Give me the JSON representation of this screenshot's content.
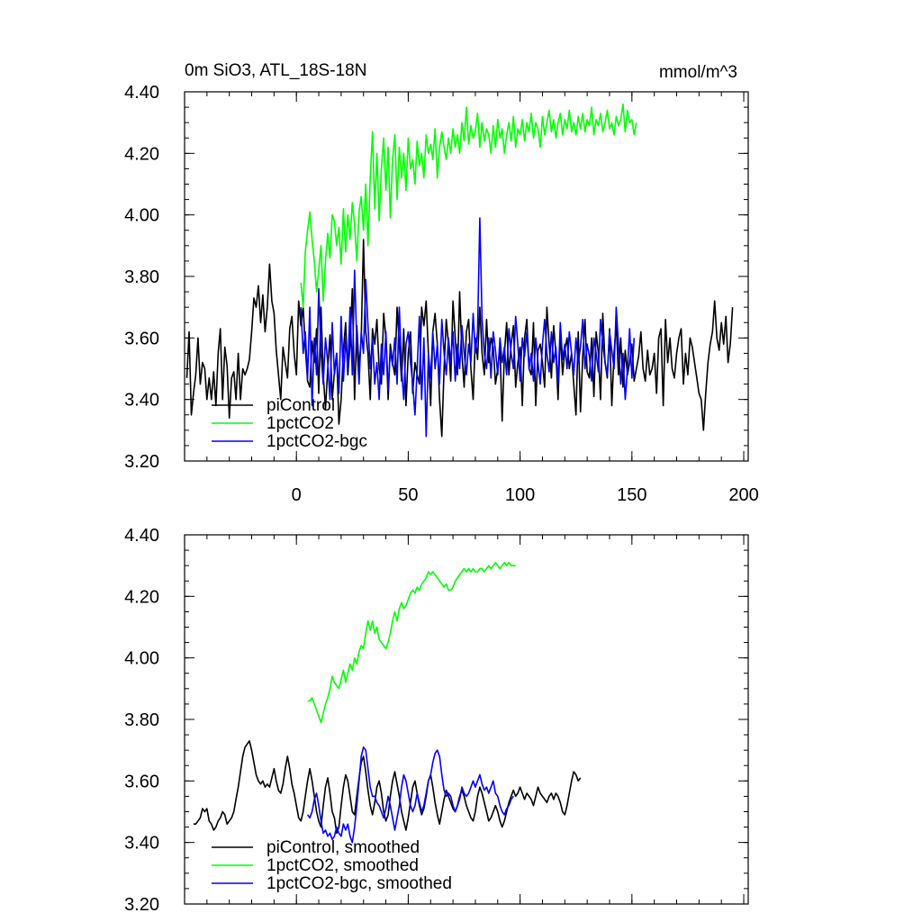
{
  "chart_data": [
    {
      "type": "line",
      "title": "0m SiO3, ATL_18S-18N",
      "units": "mmol/m^3",
      "xlim": [
        -50,
        202
      ],
      "ylim": [
        3.2,
        4.4
      ],
      "xticks": [
        0,
        50,
        100,
        150,
        200
      ],
      "xtick_labels": [
        "0",
        "50",
        "100",
        "150",
        "200"
      ],
      "yticks": [
        3.2,
        3.4,
        3.6,
        3.8,
        4.0,
        4.2,
        4.4
      ],
      "ytick_labels": [
        "3.20",
        "3.40",
        "3.60",
        "3.80",
        "4.00",
        "4.20",
        "4.40"
      ],
      "legend_position": "bottom-left",
      "series": [
        {
          "name": "piControl",
          "color": "#000000",
          "x_start": -49,
          "values": [
            3.47,
            3.62,
            3.35,
            3.42,
            3.48,
            3.6,
            3.45,
            3.52,
            3.5,
            3.4,
            3.47,
            3.4,
            3.49,
            3.38,
            3.55,
            3.63,
            3.4,
            3.57,
            3.51,
            3.34,
            3.47,
            3.49,
            3.4,
            3.55,
            3.4,
            3.5,
            3.48,
            3.5,
            3.53,
            3.62,
            3.73,
            3.7,
            3.77,
            3.65,
            3.74,
            3.62,
            3.7,
            3.84,
            3.72,
            3.68,
            3.56,
            3.48,
            3.4,
            3.57,
            3.52,
            3.47,
            3.63,
            3.67,
            3.55,
            3.48,
            3.72,
            3.64,
            3.7,
            3.57,
            3.46,
            3.44,
            3.59,
            3.52,
            3.63,
            3.42,
            3.7,
            3.48,
            3.37,
            3.5,
            3.61,
            3.4,
            3.49,
            3.55,
            3.32,
            3.4,
            3.56,
            3.65,
            3.48,
            3.58,
            3.76,
            3.4,
            3.64,
            3.5,
            3.6,
            3.92,
            3.62,
            3.55,
            3.4,
            3.63,
            3.58,
            3.66,
            3.5,
            3.45,
            3.68,
            3.6,
            3.4,
            3.58,
            3.52,
            3.48,
            3.7,
            3.58,
            3.46,
            3.63,
            3.38,
            3.55,
            3.62,
            3.42,
            3.52,
            3.48,
            3.45,
            3.7,
            3.64,
            3.72,
            3.55,
            3.38,
            3.62,
            3.68,
            3.58,
            3.4,
            3.28,
            3.5,
            3.66,
            3.58,
            3.46,
            3.72,
            3.6,
            3.48,
            3.75,
            3.55,
            3.44,
            3.62,
            3.66,
            3.5,
            3.4,
            3.6,
            3.53,
            3.7,
            3.55,
            3.48,
            3.66,
            3.52,
            3.6,
            3.57,
            3.45,
            3.5,
            3.57,
            3.33,
            3.55,
            3.65,
            3.48,
            3.58,
            3.64,
            3.44,
            3.52,
            3.57,
            3.38,
            3.6,
            3.66,
            3.5,
            3.48,
            3.65,
            3.38,
            3.56,
            3.58,
            3.52,
            3.44,
            3.7,
            3.58,
            3.47,
            3.64,
            3.55,
            3.4,
            3.62,
            3.48,
            3.56,
            3.6,
            3.5,
            3.55,
            3.45,
            3.35,
            3.62,
            3.36,
            3.54,
            3.66,
            3.49,
            3.47,
            3.6,
            3.41,
            3.62,
            3.55,
            3.4,
            3.68,
            3.52,
            3.47,
            3.63,
            3.38,
            3.55,
            3.65,
            3.48,
            3.6,
            3.44,
            3.56,
            3.48,
            3.52,
            3.58,
            3.46,
            3.5,
            3.54,
            3.62,
            3.5,
            3.46,
            3.56,
            3.48,
            3.5,
            3.55,
            3.42,
            3.6,
            3.63,
            3.38,
            3.66,
            3.52,
            3.6,
            3.5,
            3.47,
            3.55,
            3.6,
            3.63,
            3.45,
            3.55,
            3.48,
            3.6,
            3.57,
            3.52,
            3.47,
            3.42,
            3.4,
            3.3,
            3.42,
            3.52,
            3.58,
            3.62,
            3.72,
            3.6,
            3.56,
            3.65,
            3.58,
            3.67,
            3.52,
            3.58,
            3.7
          ]
        },
        {
          "name": "1pctCO2",
          "color": "#00ff00",
          "x_start": 2,
          "values": [
            3.78,
            3.7,
            3.88,
            3.95,
            4.01,
            3.92,
            3.85,
            3.75,
            3.82,
            3.9,
            3.72,
            3.85,
            3.94,
            3.86,
            4.0,
            3.98,
            3.9,
            3.96,
            3.84,
            4.02,
            3.88,
            4.0,
            3.92,
            4.04,
            3.97,
            3.85,
            4.01,
            4.06,
            3.95,
            4.1,
            3.9,
            4.12,
            4.27,
            4.02,
            4.2,
            3.98,
            4.15,
            4.25,
            4.08,
            4.22,
            3.99,
            4.18,
            4.26,
            4.05,
            4.22,
            4.12,
            4.2,
            4.08,
            4.25,
            4.15,
            4.18,
            4.1,
            4.24,
            4.16,
            4.2,
            4.12,
            4.26,
            4.2,
            4.23,
            4.18,
            4.28,
            4.12,
            4.22,
            4.27,
            4.22,
            4.18,
            4.25,
            4.2,
            4.28,
            4.22,
            4.26,
            4.2,
            4.3,
            4.24,
            4.35,
            4.23,
            4.29,
            4.25,
            4.27,
            4.33,
            4.22,
            4.3,
            4.24,
            4.28,
            4.26,
            4.2,
            4.29,
            4.22,
            4.31,
            4.25,
            4.28,
            4.2,
            4.26,
            4.3,
            4.24,
            4.32,
            4.22,
            4.28,
            4.26,
            4.31,
            4.24,
            4.3,
            4.27,
            4.33,
            4.25,
            4.3,
            4.28,
            4.22,
            4.32,
            4.26,
            4.3,
            4.34,
            4.27,
            4.31,
            4.25,
            4.3,
            4.33,
            4.26,
            4.31,
            4.28,
            4.34,
            4.27,
            4.3,
            4.26,
            4.32,
            4.28,
            4.33,
            4.27,
            4.31,
            4.29,
            4.35,
            4.26,
            4.31,
            4.29,
            4.33,
            4.27,
            4.3,
            4.34,
            4.28,
            4.3,
            4.26,
            4.32,
            4.29,
            4.31,
            4.36,
            4.27,
            4.34,
            4.3,
            4.31,
            4.26,
            4.3
          ]
        },
        {
          "name": "1pctCO2-bgc",
          "color": "#0000ff",
          "x_start": 2,
          "values": [
            3.7,
            3.55,
            3.62,
            3.47,
            3.7,
            3.38,
            3.6,
            3.48,
            3.76,
            3.55,
            3.45,
            3.6,
            3.52,
            3.4,
            3.65,
            3.48,
            3.55,
            3.42,
            3.67,
            3.46,
            3.6,
            3.5,
            3.7,
            3.48,
            3.82,
            3.58,
            3.45,
            3.62,
            3.55,
            3.79,
            3.64,
            3.5,
            3.6,
            3.45,
            3.52,
            3.4,
            3.58,
            3.48,
            3.62,
            3.43,
            3.56,
            3.51,
            3.6,
            3.45,
            3.7,
            3.5,
            3.4,
            3.58,
            3.62,
            3.52,
            3.45,
            3.35,
            3.5,
            3.67,
            3.4,
            3.6,
            3.28,
            3.55,
            3.47,
            3.62,
            3.5,
            3.58,
            3.45,
            3.66,
            3.55,
            3.48,
            3.6,
            3.52,
            3.62,
            3.46,
            3.58,
            3.5,
            3.64,
            3.55,
            3.48,
            3.58,
            3.52,
            3.68,
            3.55,
            3.62,
            3.99,
            3.66,
            3.55,
            3.5,
            3.6,
            3.47,
            3.62,
            3.56,
            3.48,
            3.6,
            3.52,
            3.57,
            3.48,
            3.63,
            3.55,
            3.5,
            3.67,
            3.58,
            3.46,
            3.6,
            3.54,
            3.62,
            3.5,
            3.55,
            3.46,
            3.6,
            3.52,
            3.45,
            3.58,
            3.66,
            3.55,
            3.49,
            3.62,
            3.52,
            3.57,
            3.45,
            3.65,
            3.53,
            3.58,
            3.5,
            3.62,
            3.55,
            3.48,
            3.6,
            3.52,
            3.57,
            3.66,
            3.5,
            3.58,
            3.54,
            3.46,
            3.6,
            3.55,
            3.49,
            3.66,
            3.58,
            3.52,
            3.48,
            3.62,
            3.56,
            3.5,
            3.7,
            3.58,
            3.45,
            3.55,
            3.4,
            3.5,
            3.63,
            3.47,
            3.6
          ]
        }
      ],
      "legend": [
        "piControl",
        "1pctCO2",
        "1pctCO2-bgc"
      ]
    },
    {
      "type": "line",
      "title": "",
      "xlim": [
        -50,
        202
      ],
      "ylim": [
        3.2,
        4.4
      ],
      "xticks": [
        0,
        50,
        100,
        150,
        200
      ],
      "yticks": [
        3.2,
        3.4,
        3.6,
        3.8,
        4.0,
        4.2,
        4.4
      ],
      "ytick_labels": [
        "3.20",
        "3.40",
        "3.60",
        "3.80",
        "4.00",
        "4.20",
        "4.40"
      ],
      "legend_position": "bottom-left",
      "series": [
        {
          "name": "piControl, smoothed",
          "color": "#000000",
          "x_start": -46,
          "values": [
            3.46,
            3.46,
            3.47,
            3.48,
            3.51,
            3.5,
            3.51,
            3.47,
            3.46,
            3.44,
            3.45,
            3.47,
            3.48,
            3.5,
            3.49,
            3.46,
            3.47,
            3.48,
            3.5,
            3.54,
            3.58,
            3.63,
            3.68,
            3.71,
            3.72,
            3.73,
            3.7,
            3.66,
            3.62,
            3.6,
            3.59,
            3.6,
            3.58,
            3.59,
            3.58,
            3.61,
            3.64,
            3.6,
            3.57,
            3.56,
            3.59,
            3.64,
            3.68,
            3.64,
            3.59,
            3.56,
            3.52,
            3.48,
            3.47,
            3.5,
            3.55,
            3.6,
            3.64,
            3.6,
            3.55,
            3.5,
            3.47,
            3.45,
            3.52,
            3.58,
            3.61,
            3.56,
            3.5,
            3.48,
            3.43,
            3.45,
            3.52,
            3.58,
            3.62,
            3.6,
            3.55,
            3.5,
            3.49,
            3.55,
            3.61,
            3.66,
            3.68,
            3.63,
            3.57,
            3.52,
            3.49,
            3.53,
            3.58,
            3.6,
            3.56,
            3.5,
            3.47,
            3.49,
            3.55,
            3.6,
            3.63,
            3.59,
            3.55,
            3.5,
            3.47,
            3.44,
            3.48,
            3.53,
            3.58,
            3.6,
            3.56,
            3.52,
            3.49,
            3.51,
            3.55,
            3.6,
            3.62,
            3.58,
            3.53,
            3.49,
            3.46,
            3.5,
            3.54,
            3.57,
            3.55,
            3.53,
            3.51,
            3.5,
            3.52,
            3.55,
            3.57,
            3.55,
            3.52,
            3.5,
            3.48,
            3.47,
            3.5,
            3.55,
            3.58,
            3.56,
            3.53,
            3.5,
            3.47,
            3.48,
            3.5,
            3.52,
            3.5,
            3.47,
            3.45,
            3.47,
            3.5,
            3.53,
            3.55,
            3.57,
            3.55,
            3.56,
            3.58,
            3.56,
            3.54,
            3.56,
            3.55,
            3.54,
            3.52,
            3.55,
            3.58,
            3.56,
            3.55,
            3.54,
            3.53,
            3.55,
            3.56,
            3.54,
            3.56,
            3.55,
            3.53,
            3.5,
            3.49,
            3.52,
            3.56,
            3.6,
            3.63,
            3.62,
            3.6,
            3.61
          ]
        },
        {
          "name": "1pctCO2, smoothed",
          "color": "#00ff00",
          "x_start": 5,
          "values": [
            3.86,
            3.86,
            3.87,
            3.85,
            3.83,
            3.81,
            3.79,
            3.82,
            3.85,
            3.87,
            3.9,
            3.94,
            3.92,
            3.91,
            3.9,
            3.93,
            3.96,
            3.92,
            3.95,
            3.98,
            3.96,
            4.0,
            3.98,
            4.02,
            4.04,
            4.03,
            4.08,
            4.12,
            4.09,
            4.12,
            4.08,
            4.1,
            4.06,
            4.05,
            4.04,
            4.03,
            4.05,
            4.08,
            4.12,
            4.15,
            4.12,
            4.16,
            4.18,
            4.16,
            4.17,
            4.19,
            4.21,
            4.22,
            4.21,
            4.23,
            4.22,
            4.24,
            4.25,
            4.26,
            4.28,
            4.27,
            4.28,
            4.27,
            4.26,
            4.25,
            4.24,
            4.23,
            4.24,
            4.22,
            4.22,
            4.23,
            4.25,
            4.26,
            4.27,
            4.28,
            4.29,
            4.28,
            4.29,
            4.28,
            4.29,
            4.28,
            4.28,
            4.29,
            4.29,
            4.28,
            4.29,
            4.3,
            4.29,
            4.3,
            4.31,
            4.3,
            4.29,
            4.3,
            4.31,
            4.3,
            4.31,
            4.3,
            4.3,
            4.3
          ]
        },
        {
          "name": "1pctCO2-bgc, smoothed",
          "color": "#0000ff",
          "x_start": 5,
          "values": [
            3.49,
            3.48,
            3.5,
            3.54,
            3.56,
            3.52,
            3.47,
            3.43,
            3.44,
            3.42,
            3.43,
            3.41,
            3.42,
            3.45,
            3.43,
            3.42,
            3.46,
            3.44,
            3.46,
            3.42,
            3.4,
            3.45,
            3.52,
            3.6,
            3.68,
            3.71,
            3.7,
            3.64,
            3.58,
            3.55,
            3.55,
            3.53,
            3.52,
            3.5,
            3.48,
            3.51,
            3.55,
            3.52,
            3.48,
            3.44,
            3.48,
            3.52,
            3.58,
            3.62,
            3.6,
            3.56,
            3.52,
            3.5,
            3.52,
            3.56,
            3.53,
            3.5,
            3.52,
            3.56,
            3.6,
            3.62,
            3.66,
            3.69,
            3.7,
            3.68,
            3.62,
            3.57,
            3.55,
            3.56,
            3.55,
            3.52,
            3.5,
            3.52,
            3.54,
            3.58,
            3.56,
            3.55,
            3.56,
            3.58,
            3.6,
            3.58,
            3.6,
            3.62,
            3.59,
            3.57,
            3.58,
            3.56,
            3.58,
            3.6,
            3.56,
            3.55,
            3.52,
            3.5,
            3.49,
            3.51,
            3.52,
            3.54,
            3.55
          ]
        }
      ],
      "legend": [
        "piControl, smoothed",
        "1pctCO2, smoothed",
        "1pctCO2-bgc, smoothed"
      ]
    }
  ]
}
